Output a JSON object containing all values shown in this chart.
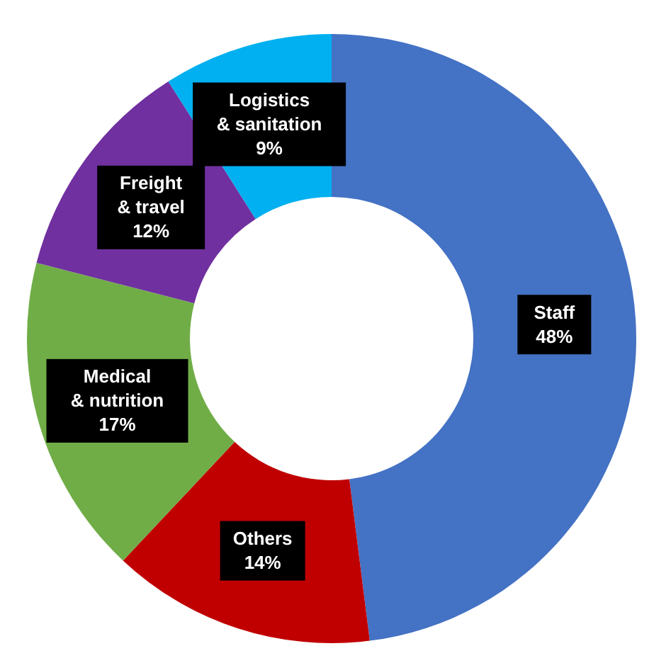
{
  "chart_data": {
    "type": "donut",
    "categories": [
      "Staff",
      "Others",
      "Medical & nutrition",
      "Freight & travel",
      "Logistics & sanitation"
    ],
    "values": [
      48,
      14,
      17,
      12,
      9
    ],
    "colors": [
      "#4472c4",
      "#c00000",
      "#70ad47",
      "#7030a0",
      "#00b0f0"
    ],
    "value_labels": [
      "48%",
      "14%",
      "17%",
      "12%",
      "9%"
    ],
    "legend": false
  }
}
